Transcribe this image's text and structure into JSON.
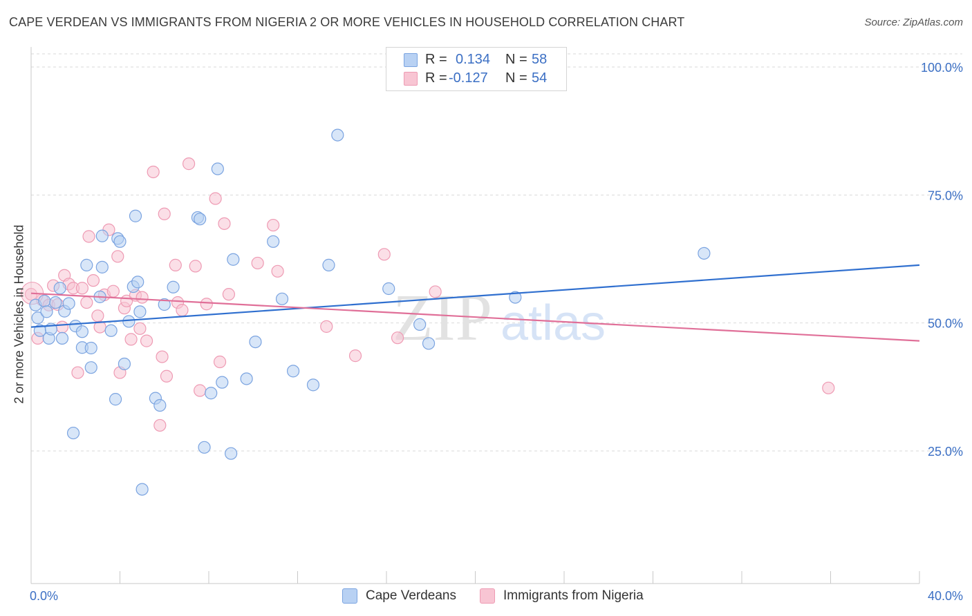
{
  "title": "CAPE VERDEAN VS IMMIGRANTS FROM NIGERIA 2 OR MORE VEHICLES IN HOUSEHOLD CORRELATION CHART",
  "source": "Source: ZipAtlas.com",
  "legend_top": {
    "rows": [
      {
        "r_label": "R =",
        "r_value": "0.134",
        "n_label": "N =",
        "n_value": "58"
      },
      {
        "r_label": "R =",
        "r_value": "-0.127",
        "n_label": "N =",
        "n_value": "54"
      }
    ]
  },
  "watermark": {
    "zip": "ZIP",
    "atlas": "atlas"
  },
  "colors": {
    "blue_fill": "#b8d1f3",
    "blue_stroke": "#7aa3e0",
    "blue_line": "#2f6fcf",
    "pink_fill": "#f8c5d3",
    "pink_stroke": "#ee9ab3",
    "pink_line": "#e06f98",
    "tick_label": "#3b6fc4",
    "grid": "#d9d9d9"
  },
  "chart_data": {
    "type": "scatter",
    "title": "CAPE VERDEAN VS IMMIGRANTS FROM NIGERIA 2 OR MORE VEHICLES IN HOUSEHOLD CORRELATION CHART",
    "xlabel": "",
    "ylabel": "2 or more Vehicles in Household",
    "xlim": [
      0,
      40
    ],
    "ylim": [
      0,
      105
    ],
    "x_tick_labels": [
      "0.0%",
      "40.0%"
    ],
    "y_ticks": [
      25,
      50,
      75,
      100
    ],
    "y_tick_labels": [
      "25.0%",
      "50.0%",
      "75.0%",
      "100.0%"
    ],
    "grid": true,
    "legend_position": "bottom",
    "series": [
      {
        "name": "Cape Verdeans",
        "color": "#b8d1f3",
        "trend": {
          "x": [
            0,
            40
          ],
          "y": [
            49.2,
            61.3
          ]
        },
        "points": [
          [
            0.2,
            53.5
          ],
          [
            0.3,
            51.0
          ],
          [
            0.4,
            48.5
          ],
          [
            0.6,
            54.3
          ],
          [
            0.7,
            52.2
          ],
          [
            0.8,
            47.0
          ],
          [
            0.9,
            48.8
          ],
          [
            1.1,
            54.0
          ],
          [
            1.3,
            56.8
          ],
          [
            1.4,
            47.0
          ],
          [
            1.5,
            52.3
          ],
          [
            1.7,
            53.8
          ],
          [
            1.9,
            28.5
          ],
          [
            2.0,
            49.4
          ],
          [
            2.3,
            48.3
          ],
          [
            2.3,
            45.2
          ],
          [
            2.5,
            61.3
          ],
          [
            2.7,
            41.3
          ],
          [
            2.7,
            45.1
          ],
          [
            3.1,
            55.1
          ],
          [
            3.2,
            67.0
          ],
          [
            3.2,
            60.9
          ],
          [
            3.6,
            48.5
          ],
          [
            3.8,
            35.1
          ],
          [
            3.9,
            66.5
          ],
          [
            4.0,
            65.9
          ],
          [
            4.2,
            42.0
          ],
          [
            4.4,
            50.3
          ],
          [
            4.6,
            57.1
          ],
          [
            4.7,
            70.9
          ],
          [
            4.8,
            58.0
          ],
          [
            4.9,
            52.2
          ],
          [
            5.0,
            17.5
          ],
          [
            5.6,
            35.3
          ],
          [
            5.8,
            33.9
          ],
          [
            6.0,
            53.6
          ],
          [
            6.4,
            57.0
          ],
          [
            7.5,
            70.6
          ],
          [
            7.6,
            70.3
          ],
          [
            7.8,
            25.7
          ],
          [
            8.1,
            36.3
          ],
          [
            8.4,
            80.1
          ],
          [
            8.6,
            38.4
          ],
          [
            9.0,
            24.5
          ],
          [
            9.1,
            62.4
          ],
          [
            9.7,
            39.1
          ],
          [
            10.1,
            46.3
          ],
          [
            10.9,
            65.9
          ],
          [
            11.3,
            54.7
          ],
          [
            11.8,
            40.6
          ],
          [
            12.7,
            37.9
          ],
          [
            13.4,
            61.3
          ],
          [
            13.8,
            86.7
          ],
          [
            16.1,
            56.7
          ],
          [
            17.5,
            49.7
          ],
          [
            17.9,
            46.0
          ],
          [
            21.8,
            55.0
          ],
          [
            30.3,
            63.6
          ]
        ]
      },
      {
        "name": "Immigrants from Nigeria",
        "color": "#f8c5d3",
        "trend": {
          "x": [
            0,
            40
          ],
          "y": [
            55.8,
            46.5
          ]
        },
        "points": [
          [
            0.0,
            55.6
          ],
          [
            0.3,
            47.0
          ],
          [
            0.5,
            54.5
          ],
          [
            0.8,
            53.5
          ],
          [
            1.0,
            57.3
          ],
          [
            1.2,
            53.6
          ],
          [
            1.4,
            49.2
          ],
          [
            1.5,
            59.3
          ],
          [
            1.7,
            57.6
          ],
          [
            1.9,
            56.8
          ],
          [
            2.1,
            40.3
          ],
          [
            2.3,
            56.8
          ],
          [
            2.5,
            54.0
          ],
          [
            2.6,
            66.9
          ],
          [
            2.8,
            58.3
          ],
          [
            3.0,
            51.4
          ],
          [
            3.1,
            49.2
          ],
          [
            3.3,
            55.5
          ],
          [
            3.5,
            68.2
          ],
          [
            3.7,
            56.2
          ],
          [
            3.9,
            63.0
          ],
          [
            4.0,
            40.3
          ],
          [
            4.2,
            52.9
          ],
          [
            4.3,
            54.3
          ],
          [
            4.5,
            46.8
          ],
          [
            4.7,
            55.4
          ],
          [
            4.9,
            48.9
          ],
          [
            5.0,
            55.0
          ],
          [
            5.2,
            46.5
          ],
          [
            5.5,
            79.5
          ],
          [
            5.8,
            30.0
          ],
          [
            5.9,
            43.4
          ],
          [
            6.0,
            71.3
          ],
          [
            6.1,
            39.6
          ],
          [
            6.5,
            61.3
          ],
          [
            6.6,
            54.0
          ],
          [
            6.8,
            52.5
          ],
          [
            7.1,
            81.1
          ],
          [
            7.4,
            61.1
          ],
          [
            7.6,
            36.8
          ],
          [
            7.9,
            53.7
          ],
          [
            8.3,
            74.3
          ],
          [
            8.5,
            42.4
          ],
          [
            8.7,
            69.4
          ],
          [
            8.9,
            55.6
          ],
          [
            10.2,
            61.7
          ],
          [
            10.9,
            69.1
          ],
          [
            11.1,
            60.1
          ],
          [
            13.3,
            49.3
          ],
          [
            14.6,
            43.6
          ],
          [
            15.9,
            63.4
          ],
          [
            16.5,
            47.1
          ],
          [
            18.2,
            56.1
          ],
          [
            35.9,
            37.3
          ]
        ]
      }
    ]
  },
  "legend_bottom": {
    "items": [
      "Cape Verdeans",
      "Immigrants from Nigeria"
    ]
  }
}
